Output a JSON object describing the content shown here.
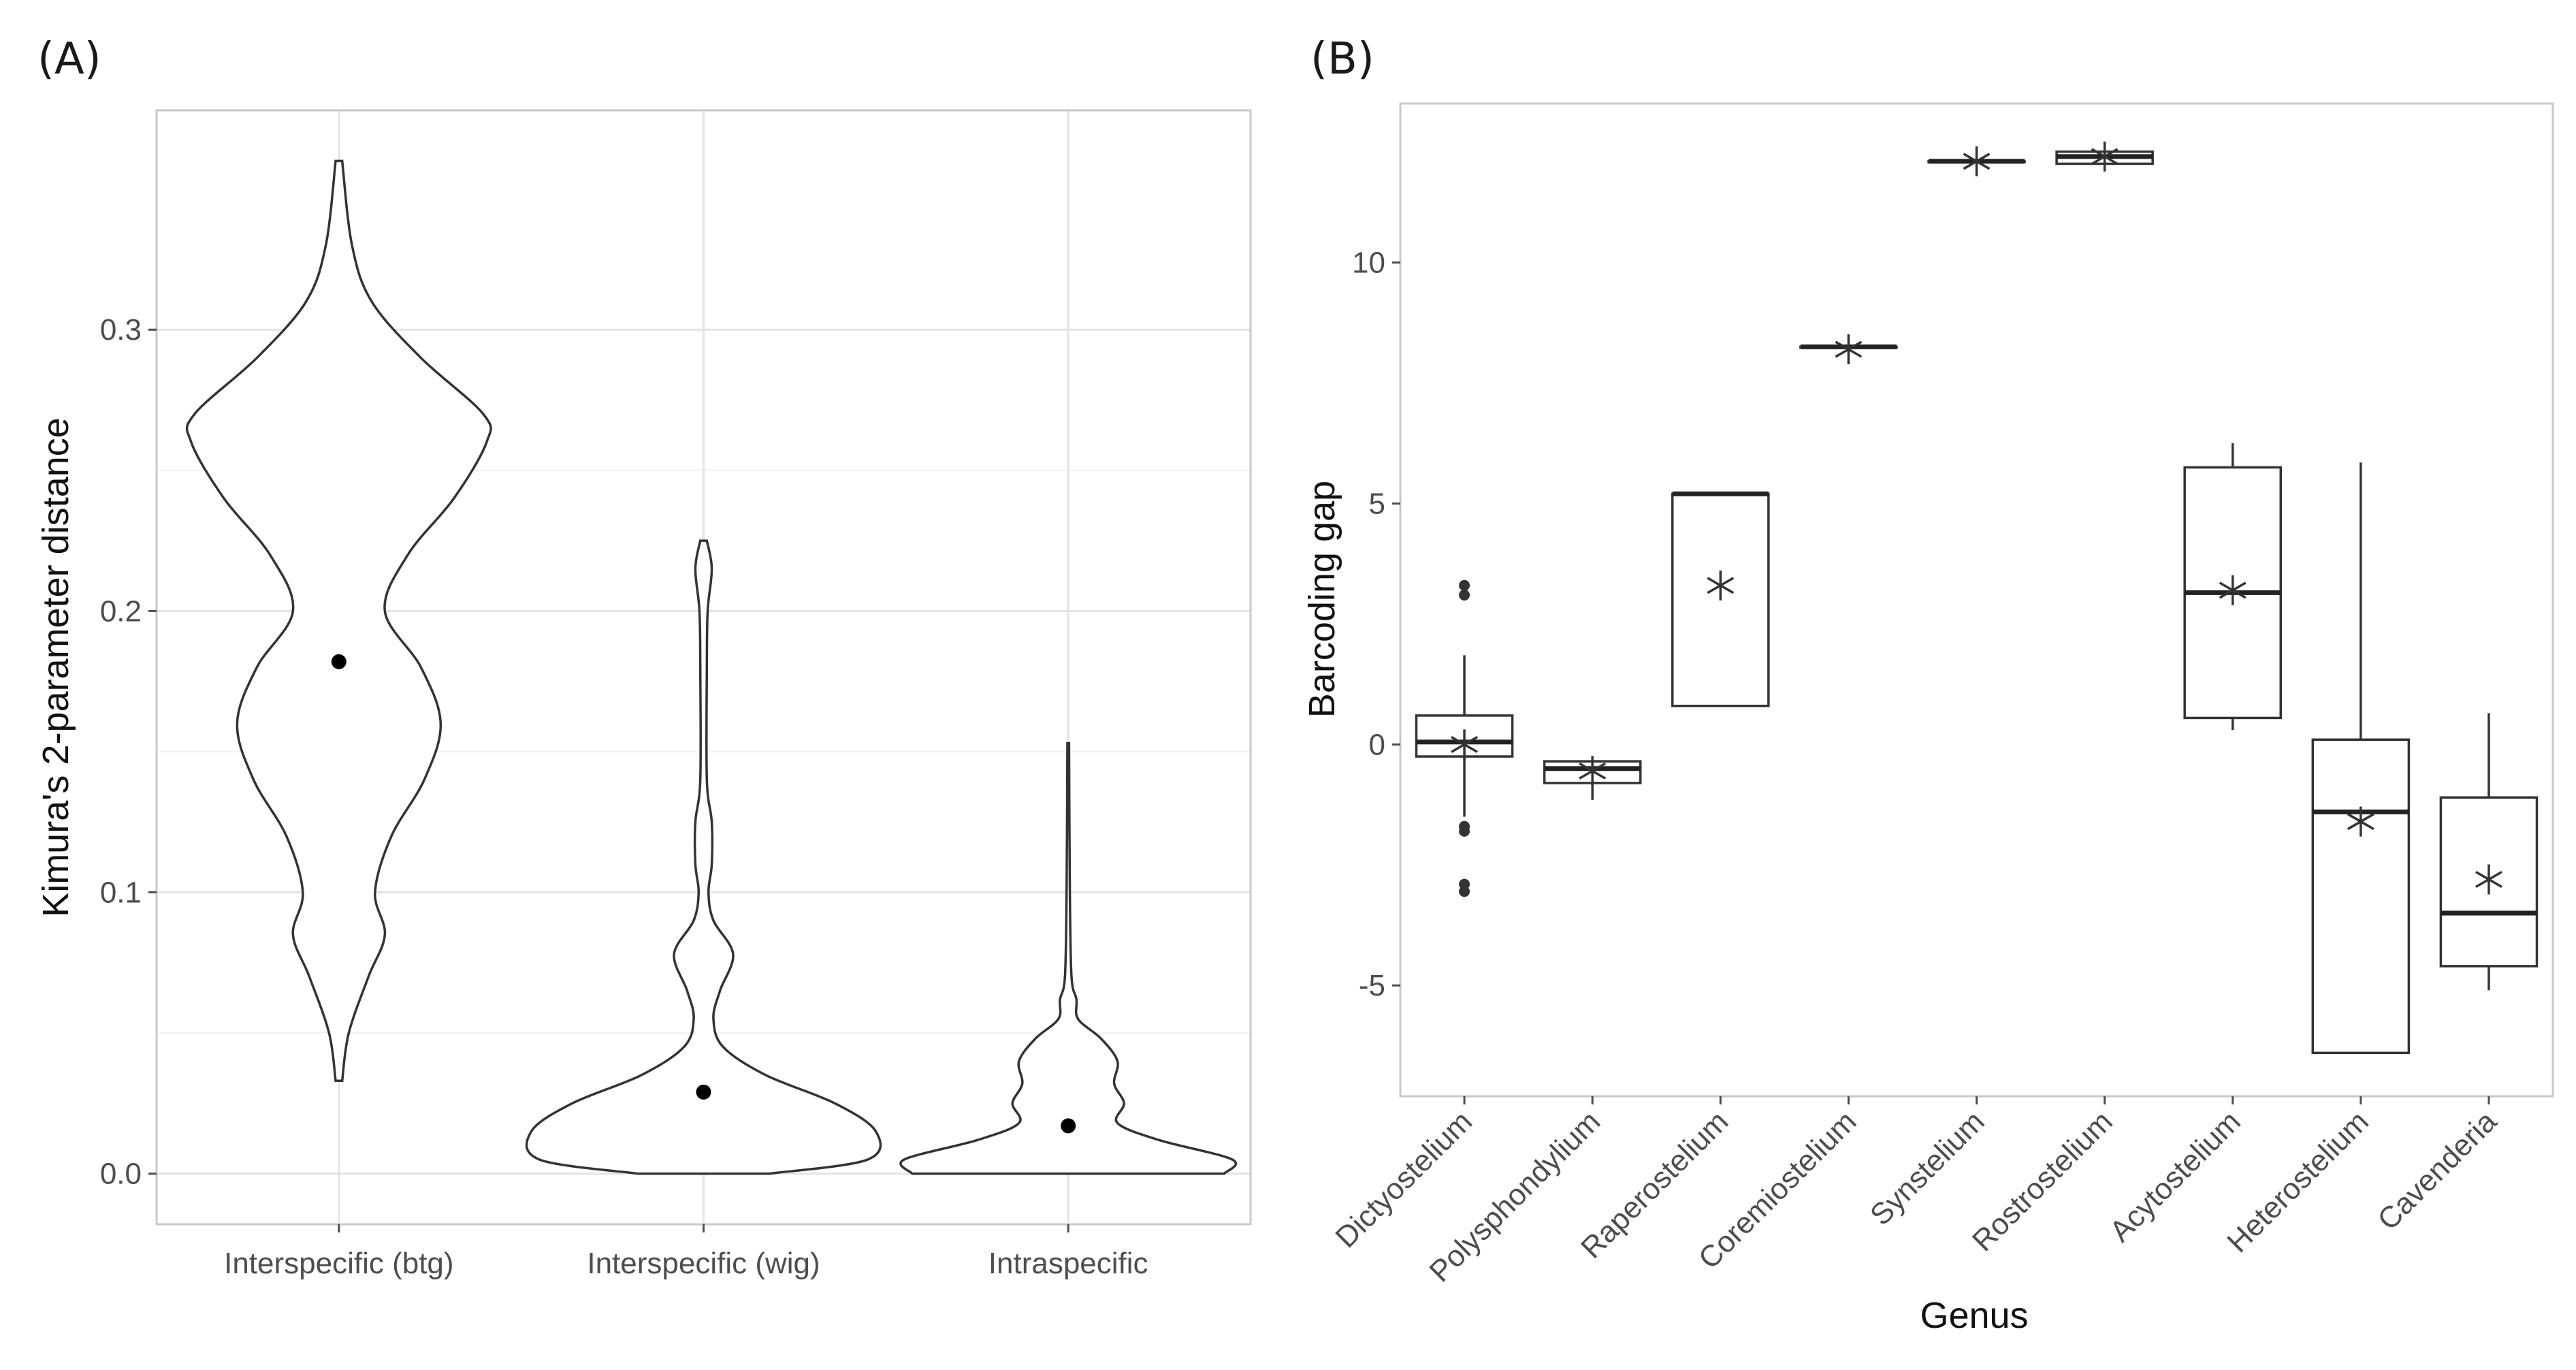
{
  "chart_data": [
    {
      "panel": "(A)",
      "type": "violin",
      "ylabel": "Kimura's 2-parameter distance",
      "xlabel": "",
      "ylim": [
        -0.018,
        0.378
      ],
      "yticks": [
        "0.0",
        "0.1",
        "0.2",
        "0.3"
      ],
      "ytick_values": [
        0.0,
        0.1,
        0.2,
        0.3
      ],
      "categories": [
        "Interspecific (btg)",
        "Interspecific (wig)",
        "Intraspecific"
      ],
      "series": [
        {
          "name": "Interspecific (btg)",
          "min": 0.033,
          "max": 0.36,
          "mean": 0.182,
          "density": [
            [
              0.033,
              0.02
            ],
            [
              0.05,
              0.06
            ],
            [
              0.07,
              0.18
            ],
            [
              0.085,
              0.28
            ],
            [
              0.1,
              0.22
            ],
            [
              0.12,
              0.32
            ],
            [
              0.14,
              0.52
            ],
            [
              0.16,
              0.62
            ],
            [
              0.18,
              0.5
            ],
            [
              0.2,
              0.28
            ],
            [
              0.22,
              0.42
            ],
            [
              0.24,
              0.7
            ],
            [
              0.26,
              0.9
            ],
            [
              0.27,
              0.88
            ],
            [
              0.29,
              0.5
            ],
            [
              0.31,
              0.2
            ],
            [
              0.33,
              0.08
            ],
            [
              0.36,
              0.02
            ]
          ]
        },
        {
          "name": "Interspecific (wig)",
          "min": 0.0,
          "max": 0.225,
          "mean": 0.029,
          "density": [
            [
              0.0,
              0.4
            ],
            [
              0.005,
              1.0
            ],
            [
              0.015,
              1.05
            ],
            [
              0.025,
              0.8
            ],
            [
              0.035,
              0.38
            ],
            [
              0.045,
              0.12
            ],
            [
              0.055,
              0.06
            ],
            [
              0.065,
              0.1
            ],
            [
              0.078,
              0.18
            ],
            [
              0.09,
              0.06
            ],
            [
              0.1,
              0.03
            ],
            [
              0.11,
              0.05
            ],
            [
              0.125,
              0.05
            ],
            [
              0.14,
              0.02
            ],
            [
              0.18,
              0.02
            ],
            [
              0.2,
              0.025
            ],
            [
              0.215,
              0.05
            ],
            [
              0.225,
              0.02
            ]
          ]
        },
        {
          "name": "Intraspecific",
          "min": 0.0,
          "max": 0.153,
          "mean": 0.017,
          "density": [
            [
              0.0,
              0.95
            ],
            [
              0.005,
              1.0
            ],
            [
              0.012,
              0.55
            ],
            [
              0.018,
              0.3
            ],
            [
              0.025,
              0.34
            ],
            [
              0.032,
              0.28
            ],
            [
              0.04,
              0.3
            ],
            [
              0.048,
              0.2
            ],
            [
              0.055,
              0.06
            ],
            [
              0.062,
              0.05
            ],
            [
              0.07,
              0.02
            ],
            [
              0.1,
              0.01
            ],
            [
              0.153,
              0.005
            ]
          ]
        }
      ]
    },
    {
      "panel": "(B)",
      "type": "box",
      "xlabel": "Genus",
      "ylabel": "Barcoding gap",
      "ylim": [
        -7.3,
        13.3
      ],
      "yticks": [
        "-5",
        "0",
        "5",
        "10"
      ],
      "ytick_values": [
        -5,
        0,
        5,
        10
      ],
      "categories": [
        "Dictyostelium",
        "Polysphondylium",
        "Raperostelium",
        "Coremiostelium",
        "Synstelium",
        "Rostrostelium",
        "Acytostelium",
        "Heterostelium",
        "Cavenderia"
      ],
      "series": [
        {
          "name": "Dictyostelium",
          "q1": -0.25,
          "median": 0.05,
          "q3": 0.6,
          "whisker_low": -1.5,
          "whisker_high": 1.85,
          "mean": 0.0,
          "outliers": [
            3.3,
            3.1,
            -1.7,
            -1.8,
            -2.9,
            -3.05
          ]
        },
        {
          "name": "Polysphondylium",
          "q1": -0.8,
          "median": -0.5,
          "q3": -0.35,
          "whisker_low": -1.15,
          "whisker_high": -0.35,
          "mean": -0.55,
          "outliers": []
        },
        {
          "name": "Raperostelium",
          "q1": 0.8,
          "median": 5.2,
          "q3": 5.2,
          "whisker_low": 0.8,
          "whisker_high": 5.2,
          "mean": 3.3,
          "outliers": []
        },
        {
          "name": "Coremiostelium",
          "q1": 8.25,
          "median": 8.25,
          "q3": 8.25,
          "whisker_low": 8.25,
          "whisker_high": 8.25,
          "mean": 8.2,
          "outliers": []
        },
        {
          "name": "Synstelium",
          "q1": 12.1,
          "median": 12.1,
          "q3": 12.1,
          "whisker_low": 12.1,
          "whisker_high": 12.1,
          "mean": 12.1,
          "outliers": []
        },
        {
          "name": "Rostrostelium",
          "q1": 12.05,
          "median": 12.2,
          "q3": 12.3,
          "whisker_low": 12.05,
          "whisker_high": 12.3,
          "mean": 12.2,
          "outliers": []
        },
        {
          "name": "Acytostelium",
          "q1": 0.55,
          "median": 3.15,
          "q3": 5.75,
          "whisker_low": 0.3,
          "whisker_high": 6.25,
          "mean": 3.2,
          "outliers": []
        },
        {
          "name": "Heterostelium",
          "q1": -6.4,
          "median": -1.4,
          "q3": 0.1,
          "whisker_low": -6.4,
          "whisker_high": 5.85,
          "mean": -1.6,
          "outliers": []
        },
        {
          "name": "Cavenderia",
          "q1": -4.6,
          "median": -3.5,
          "q3": -1.1,
          "whisker_low": -5.1,
          "whisker_high": 0.65,
          "mean": -2.8,
          "outliers": []
        }
      ]
    }
  ]
}
